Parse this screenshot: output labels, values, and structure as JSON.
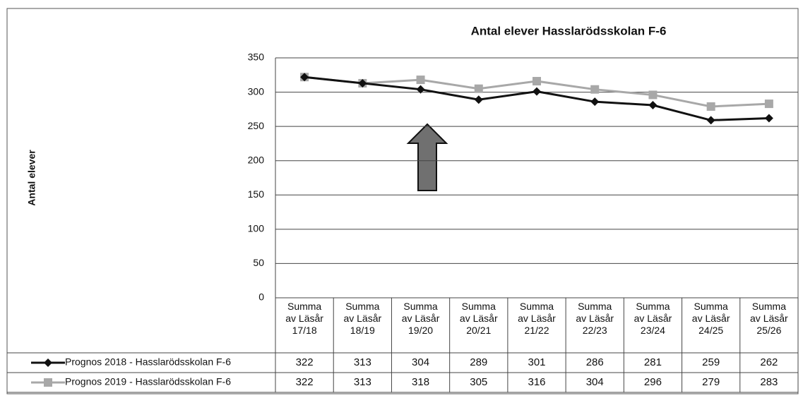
{
  "chart_data": {
    "type": "line",
    "title": "Antal elever Hasslarödsskolan F-6",
    "y_label": "Antal elever",
    "categories": [
      "Summa av Läsår 17/18",
      "Summa av Läsår 18/19",
      "Summa av Läsår 19/20",
      "Summa av Läsår 20/21",
      "Summa av Läsår 21/22",
      "Summa av Läsår 22/23",
      "Summa av Läsår 23/24",
      "Summa av Läsår 24/25",
      "Summa av Läsår 25/26"
    ],
    "series": [
      {
        "name": "Prognos 2018 - Hasslarödsskolan F-6",
        "color": "#111111",
        "marker": "diamond",
        "values": [
          322,
          313,
          304,
          289,
          301,
          286,
          281,
          259,
          262
        ]
      },
      {
        "name": "Prognos 2019 - Hasslarödsskolan F-6",
        "color": "#a8a8a8",
        "marker": "square",
        "values": [
          322,
          313,
          318,
          305,
          316,
          304,
          296,
          279,
          283
        ]
      }
    ],
    "ylim": [
      0,
      350
    ],
    "yticks": [
      0,
      50,
      100,
      150,
      200,
      250,
      300,
      350
    ],
    "grid": true,
    "data_table": true
  }
}
